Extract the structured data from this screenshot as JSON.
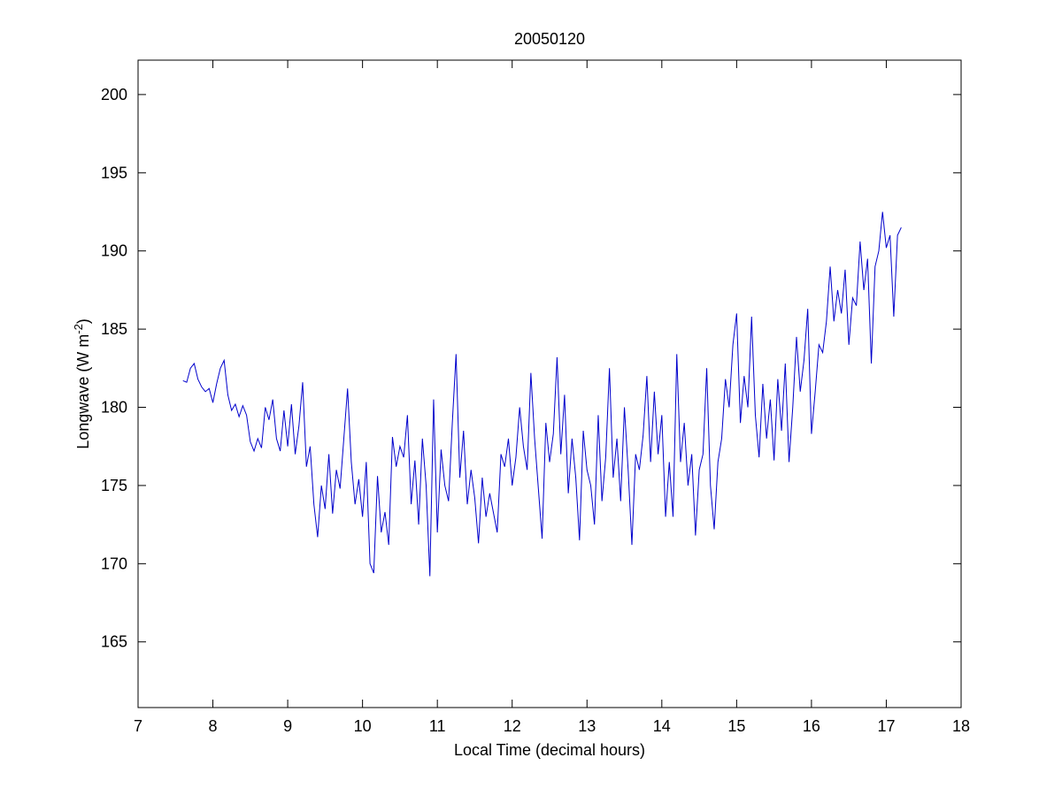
{
  "chart_data": {
    "type": "line",
    "title": "20050120",
    "xlabel": "Local Time (decimal hours)",
    "ylabel": [
      "Longwave (W m",
      "-2",
      ")"
    ],
    "xlim": [
      7,
      18
    ],
    "xticks": [
      7,
      8,
      9,
      10,
      11,
      12,
      13,
      14,
      15,
      16,
      17,
      18
    ],
    "ylim": [
      160.8,
      202.2
    ],
    "yticks": [
      165,
      170,
      175,
      180,
      185,
      190,
      195,
      200
    ],
    "grid": false,
    "x": [
      7.6,
      7.65,
      7.7,
      7.75,
      7.8,
      7.85,
      7.9,
      7.95,
      8.0,
      8.05,
      8.1,
      8.15,
      8.2,
      8.25,
      8.3,
      8.35,
      8.4,
      8.45,
      8.5,
      8.55,
      8.6,
      8.65,
      8.7,
      8.75,
      8.8,
      8.85,
      8.9,
      8.95,
      9.0,
      9.05,
      9.1,
      9.15,
      9.2,
      9.25,
      9.3,
      9.35,
      9.4,
      9.45,
      9.5,
      9.55,
      9.6,
      9.65,
      9.7,
      9.75,
      9.8,
      9.85,
      9.9,
      9.95,
      10.0,
      10.05,
      10.1,
      10.15,
      10.2,
      10.25,
      10.3,
      10.35,
      10.4,
      10.45,
      10.5,
      10.55,
      10.6,
      10.65,
      10.7,
      10.75,
      10.8,
      10.85,
      10.9,
      10.95,
      11.0,
      11.05,
      11.1,
      11.15,
      11.2,
      11.25,
      11.3,
      11.35,
      11.4,
      11.45,
      11.5,
      11.55,
      11.6,
      11.65,
      11.7,
      11.8,
      11.85,
      11.9,
      11.95,
      12.0,
      12.05,
      12.1,
      12.15,
      12.2,
      12.25,
      12.3,
      12.35,
      12.4,
      12.45,
      12.5,
      12.55,
      12.6,
      12.65,
      12.7,
      12.75,
      12.8,
      12.85,
      12.9,
      12.95,
      13.0,
      13.05,
      13.1,
      13.15,
      13.2,
      13.25,
      13.3,
      13.35,
      13.4,
      13.45,
      13.5,
      13.55,
      13.6,
      13.65,
      13.7,
      13.75,
      13.8,
      13.85,
      13.9,
      13.95,
      14.0,
      14.05,
      14.1,
      14.15,
      14.2,
      14.25,
      14.3,
      14.35,
      14.4,
      14.45,
      14.5,
      14.55,
      14.6,
      14.65,
      14.7,
      14.75,
      14.8,
      14.85,
      14.9,
      14.95,
      15.0,
      15.05,
      15.1,
      15.15,
      15.2,
      15.25,
      15.3,
      15.35,
      15.4,
      15.45,
      15.5,
      15.55,
      15.6,
      15.65,
      15.7,
      15.75,
      15.8,
      15.85,
      15.9,
      15.95,
      16.0,
      16.05,
      16.1,
      16.15,
      16.2,
      16.25,
      16.3,
      16.35,
      16.4,
      16.45,
      16.5,
      16.55,
      16.6,
      16.65,
      16.7,
      16.75,
      16.8,
      16.85,
      16.9,
      16.95,
      17.0,
      17.05,
      17.1,
      17.15,
      17.2
    ],
    "series": [
      {
        "color": "#0000cc",
        "values": [
          181.7,
          181.6,
          182.5,
          182.8,
          181.8,
          181.3,
          181.0,
          181.2,
          180.3,
          181.5,
          182.5,
          183.0,
          180.8,
          179.8,
          180.2,
          179.4,
          180.1,
          179.5,
          177.8,
          177.2,
          178.0,
          177.4,
          180.0,
          179.2,
          180.5,
          178.0,
          177.2,
          179.8,
          177.5,
          180.2,
          177.0,
          178.8,
          181.6,
          176.2,
          177.5,
          173.8,
          171.7,
          175.0,
          173.5,
          177.0,
          173.2,
          176.0,
          174.8,
          178.0,
          181.2,
          176.5,
          173.8,
          175.4,
          173.0,
          176.5,
          170.0,
          169.4,
          175.6,
          172.0,
          173.3,
          171.2,
          178.1,
          176.2,
          177.5,
          176.8,
          179.5,
          173.8,
          176.6,
          172.5,
          178.0,
          175.0,
          169.2,
          180.5,
          172.0,
          177.3,
          175.0,
          174.0,
          179.0,
          183.4,
          175.5,
          178.5,
          173.8,
          176.0,
          174.2,
          171.3,
          175.5,
          173.0,
          174.5,
          172.0,
          177.0,
          176.2,
          178.0,
          175.0,
          176.8,
          180.0,
          177.5,
          176.0,
          182.2,
          178.0,
          174.8,
          171.6,
          179.0,
          176.5,
          178.3,
          183.2,
          177.0,
          180.8,
          174.5,
          178.0,
          175.5,
          171.5,
          178.5,
          176.0,
          175.0,
          172.5,
          179.5,
          174.0,
          176.8,
          182.5,
          175.5,
          178.0,
          174.0,
          180.0,
          176.0,
          171.2,
          177.0,
          176.0,
          178.2,
          182.0,
          176.5,
          181.0,
          177.0,
          179.5,
          173.0,
          176.5,
          173.0,
          183.4,
          176.5,
          179.0,
          175.0,
          177.0,
          171.8,
          176.0,
          177.0,
          182.5,
          175.0,
          172.2,
          176.5,
          178.0,
          181.8,
          180.0,
          184.0,
          186.0,
          179.0,
          182.0,
          180.0,
          185.8,
          179.5,
          176.8,
          181.5,
          178.0,
          180.5,
          176.6,
          181.8,
          178.5,
          182.8,
          176.5,
          180.0,
          184.5,
          181.0,
          183.0,
          186.3,
          178.3,
          181.0,
          184.0,
          183.5,
          185.5,
          189.0,
          185.5,
          187.5,
          186.0,
          188.8,
          184.0,
          187.0,
          186.5,
          190.6,
          187.5,
          189.5,
          182.8,
          189.0,
          190.0,
          192.5,
          190.2,
          191.0,
          185.8,
          191.0,
          191.5
        ]
      }
    ]
  }
}
